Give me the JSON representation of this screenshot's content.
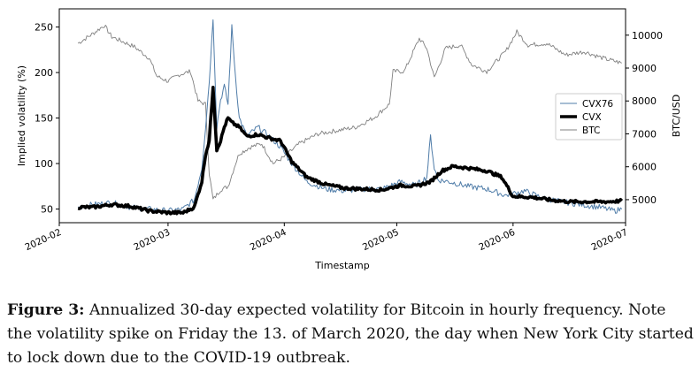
{
  "chart_data": {
    "type": "line",
    "xlabel": "Timestamp",
    "ylabel_left": "Implied volatility (%)",
    "ylabel_right": "BTC/USD",
    "x_ticks": [
      "2020-02",
      "2020-03",
      "2020-04",
      "2020-05",
      "2020-06",
      "2020-07"
    ],
    "ylim_left": [
      35,
      270
    ],
    "yticks_left": [
      50,
      100,
      150,
      200,
      250
    ],
    "ylim_right": [
      4300,
      10800
    ],
    "yticks_right": [
      5000,
      6000,
      7000,
      8000,
      9000,
      10000
    ],
    "xlim": [
      "2020-02-01",
      "2020-07-01"
    ],
    "legend_position": "center-right",
    "grid": false,
    "series": [
      {
        "name": "CVX76",
        "axis": "left",
        "color": "#4f7ca8",
        "x": [
          "2020-02-06",
          "2020-02-10",
          "2020-02-15",
          "2020-02-20",
          "2020-02-25",
          "2020-03-01",
          "2020-03-05",
          "2020-03-08",
          "2020-03-10",
          "2020-03-11",
          "2020-03-12",
          "2020-03-13",
          "2020-03-14",
          "2020-03-15",
          "2020-03-16",
          "2020-03-17",
          "2020-03-18",
          "2020-03-19",
          "2020-03-20",
          "2020-03-22",
          "2020-03-25",
          "2020-03-28",
          "2020-03-31",
          "2020-04-03",
          "2020-04-07",
          "2020-04-12",
          "2020-04-17",
          "2020-04-22",
          "2020-04-27",
          "2020-05-02",
          "2020-05-06",
          "2020-05-09",
          "2020-05-10",
          "2020-05-11",
          "2020-05-12",
          "2020-05-15",
          "2020-05-20",
          "2020-05-25",
          "2020-05-30",
          "2020-06-04",
          "2020-06-09",
          "2020-06-14",
          "2020-06-19",
          "2020-06-24",
          "2020-06-28",
          "2020-06-30"
        ],
        "y": [
          52,
          55,
          57,
          52,
          50,
          48,
          50,
          60,
          95,
          140,
          190,
          260,
          140,
          170,
          185,
          165,
          250,
          195,
          150,
          130,
          140,
          130,
          118,
          100,
          80,
          72,
          70,
          72,
          72,
          80,
          76,
          85,
          130,
          95,
          82,
          80,
          75,
          72,
          65,
          70,
          62,
          58,
          55,
          52,
          48,
          50
        ]
      },
      {
        "name": "CVX",
        "axis": "left",
        "color": "#000000",
        "x": [
          "2020-02-06",
          "2020-02-10",
          "2020-02-15",
          "2020-02-20",
          "2020-02-25",
          "2020-03-01",
          "2020-03-05",
          "2020-03-08",
          "2020-03-10",
          "2020-03-11",
          "2020-03-12",
          "2020-03-13",
          "2020-03-14",
          "2020-03-15",
          "2020-03-16",
          "2020-03-17",
          "2020-03-18",
          "2020-03-20",
          "2020-03-22",
          "2020-03-25",
          "2020-03-28",
          "2020-03-31",
          "2020-04-03",
          "2020-04-07",
          "2020-04-12",
          "2020-04-17",
          "2020-04-22",
          "2020-04-27",
          "2020-05-02",
          "2020-05-06",
          "2020-05-10",
          "2020-05-13",
          "2020-05-16",
          "2020-05-20",
          "2020-05-25",
          "2020-05-29",
          "2020-06-01",
          "2020-06-06",
          "2020-06-11",
          "2020-06-16",
          "2020-06-21",
          "2020-06-26",
          "2020-06-30"
        ],
        "y": [
          52,
          52,
          55,
          53,
          48,
          46,
          46,
          52,
          80,
          110,
          125,
          185,
          115,
          125,
          140,
          150,
          145,
          140,
          130,
          132,
          128,
          125,
          102,
          85,
          77,
          73,
          72,
          71,
          76,
          75,
          80,
          92,
          97,
          95,
          92,
          85,
          64,
          63,
          60,
          58,
          58,
          58,
          59
        ]
      },
      {
        "name": "BTC",
        "axis": "right",
        "color": "#808080",
        "x": [
          "2020-02-06",
          "2020-02-10",
          "2020-02-13",
          "2020-02-15",
          "2020-02-18",
          "2020-02-21",
          "2020-02-25",
          "2020-02-27",
          "2020-03-01",
          "2020-03-04",
          "2020-03-07",
          "2020-03-09",
          "2020-03-11",
          "2020-03-12",
          "2020-03-13",
          "2020-03-15",
          "2020-03-17",
          "2020-03-19",
          "2020-03-20",
          "2020-03-23",
          "2020-03-26",
          "2020-03-29",
          "2020-04-01",
          "2020-04-05",
          "2020-04-10",
          "2020-04-15",
          "2020-04-20",
          "2020-04-25",
          "2020-04-29",
          "2020-04-30",
          "2020-05-03",
          "2020-05-07",
          "2020-05-09",
          "2020-05-11",
          "2020-05-14",
          "2020-05-18",
          "2020-05-21",
          "2020-05-25",
          "2020-05-30",
          "2020-06-02",
          "2020-06-05",
          "2020-06-10",
          "2020-06-15",
          "2020-06-20",
          "2020-06-25",
          "2020-06-30"
        ],
        "y": [
          9750,
          10050,
          10300,
          9950,
          9800,
          9650,
          9300,
          8750,
          8600,
          8800,
          8900,
          8000,
          7900,
          5800,
          5000,
          5300,
          5400,
          6100,
          6400,
          6600,
          6700,
          6100,
          6300,
          6700,
          7000,
          7100,
          7200,
          7500,
          7900,
          8900,
          8900,
          9900,
          9600,
          8700,
          9600,
          9700,
          9100,
          8900,
          9500,
          10100,
          9700,
          9750,
          9400,
          9500,
          9300,
          9150
        ]
      }
    ]
  },
  "caption": {
    "label": "Figure 3:",
    "text": "Annualized 30-day expected volatility for Bitcoin in hourly frequency. Note the volatility spike on Friday the 13. of March 2020, the day when New York City started to lock down due to the COVID-19 outbreak."
  }
}
